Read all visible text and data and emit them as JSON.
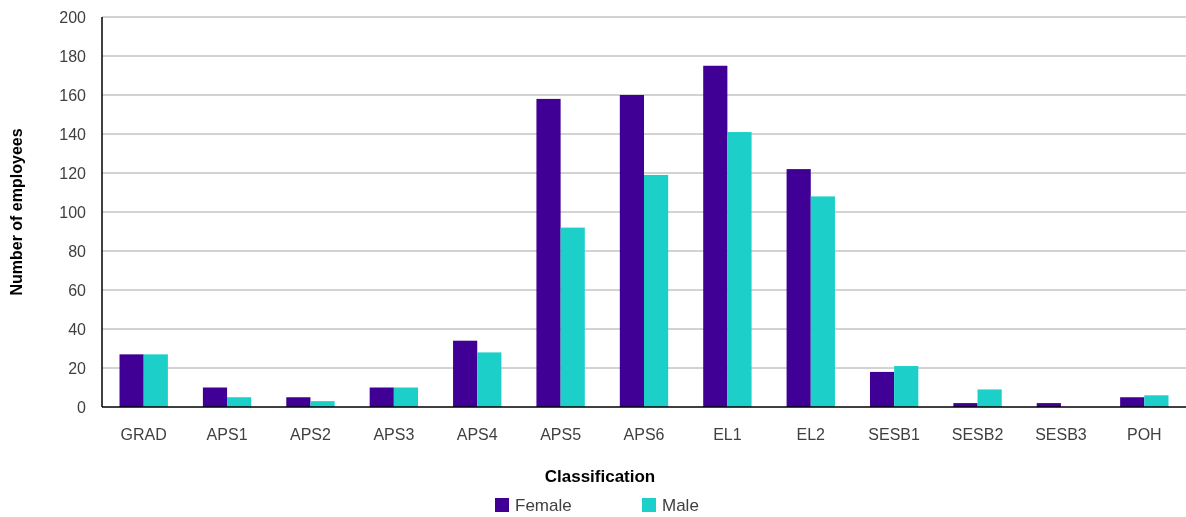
{
  "chart_data": {
    "type": "bar",
    "xlabel": "Classification",
    "ylabel": "Number of employees",
    "categories": [
      "GRAD",
      "APS1",
      "APS2",
      "APS3",
      "APS4",
      "APS5",
      "APS6",
      "EL1",
      "EL2",
      "SESB1",
      "SESB2",
      "SESB3",
      "POH"
    ],
    "series": [
      {
        "name": "Female",
        "color": "#400096",
        "values": [
          27,
          10,
          5,
          10,
          34,
          158,
          160,
          175,
          122,
          18,
          2,
          2,
          5
        ]
      },
      {
        "name": "Male",
        "color": "#1ccfc9",
        "values": [
          27,
          5,
          3,
          10,
          28,
          92,
          119,
          141,
          108,
          21,
          9,
          0,
          6
        ]
      }
    ],
    "ylim": [
      0,
      200
    ],
    "yticks": [
      0,
      20,
      40,
      60,
      80,
      100,
      120,
      140,
      160,
      180,
      200
    ],
    "grid": "y",
    "legend": "bottom"
  }
}
